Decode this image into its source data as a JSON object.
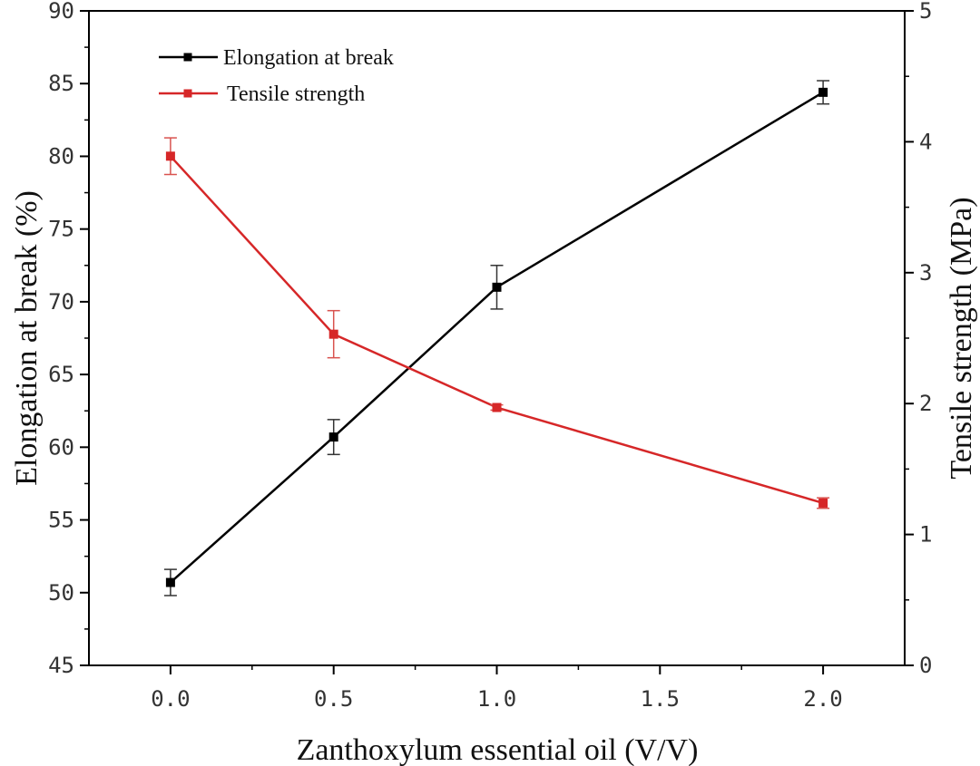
{
  "chart_data": {
    "type": "line",
    "x": [
      0.0,
      0.5,
      1.0,
      2.0
    ],
    "xlabel": "Zanthoxylum essential oil (V/V)",
    "xlim": [
      -0.25,
      2.25
    ],
    "xticks": [
      "0.0",
      "0.5",
      "1.0",
      "1.5",
      "2.0"
    ],
    "ylabel": "Elongation at break (%)",
    "ylim": [
      45,
      90
    ],
    "yticks": [
      "45",
      "50",
      "55",
      "60",
      "65",
      "70",
      "75",
      "80",
      "85",
      "90"
    ],
    "y2label": "Tensile strength (MPa)",
    "y2lim": [
      0,
      5
    ],
    "y2ticks": [
      "0",
      "1",
      "2",
      "3",
      "4",
      "5"
    ],
    "grid": false,
    "legend_position": "top-left",
    "series": [
      {
        "name": "Elongation at break",
        "axis": "left",
        "color": "#000000",
        "values": [
          50.7,
          60.7,
          71.0,
          84.4
        ],
        "errors": [
          0.9,
          1.2,
          1.5,
          0.8
        ]
      },
      {
        "name": "Tensile strength",
        "axis": "right",
        "color": "#d62728",
        "values": [
          3.89,
          2.53,
          1.97,
          1.24
        ],
        "errors": [
          0.14,
          0.18,
          0.02,
          0.04
        ]
      }
    ]
  }
}
